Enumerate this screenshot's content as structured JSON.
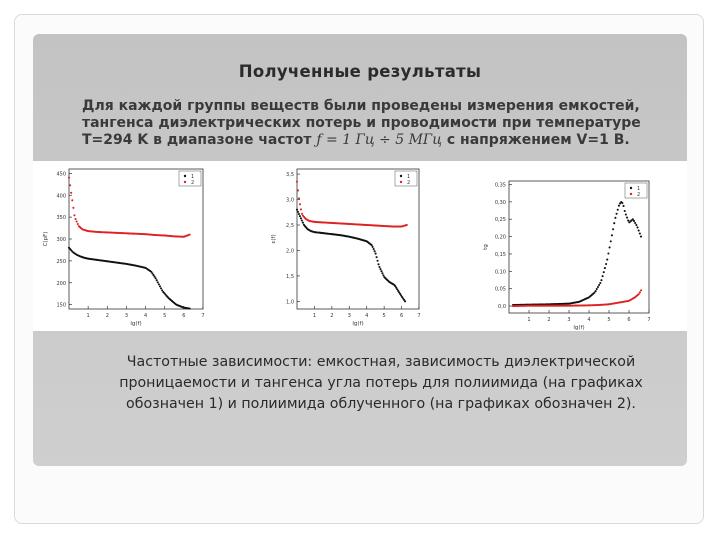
{
  "slide": {
    "title": "Полученные результаты",
    "intro": {
      "before": "Для каждой группы веществ были проведены измерения емкостей, тангенса диэлектрических потерь и проводимости при температуре T=294 K в диапазоне частот ",
      "formula": "ƒ = 1 Гц ÷ 5 МГц",
      "after": " с напряжением V=1 В."
    },
    "caption": "Частотные зависимости: емкостная, зависимость диэлектрической проницаемости и тангенса угла потерь для полиимида (на графиках обозначен 1) и полиимида облученного (на графиках обозначен 2)."
  },
  "colors": {
    "series1": "#111111",
    "series2": "#dd2222"
  },
  "chart_data": [
    {
      "type": "scatter",
      "ylabel": "C(pF)",
      "xlabel": "lg(f)",
      "xlim": [
        0,
        7
      ],
      "ylim": [
        140,
        460
      ],
      "xticks": [
        "1",
        "2",
        "3",
        "4",
        "5",
        "6",
        "7"
      ],
      "yticks": [
        "150",
        "200",
        "250",
        "300",
        "350",
        "400",
        "450"
      ],
      "legend_placement": "top-right",
      "series": [
        {
          "name": "1",
          "x": [
            0.0,
            0.2,
            0.4,
            0.6,
            0.8,
            1.0,
            1.5,
            2.0,
            2.5,
            3.0,
            3.5,
            4.0,
            4.3,
            4.5,
            4.7,
            4.9,
            5.2,
            5.6,
            6.0,
            6.3
          ],
          "y": [
            280,
            270,
            264,
            260,
            257,
            255,
            252,
            249,
            246,
            243,
            239,
            234,
            225,
            212,
            196,
            180,
            165,
            150,
            143,
            141
          ]
        },
        {
          "name": "2",
          "x": [
            0.0,
            0.1,
            0.2,
            0.3,
            0.5,
            0.7,
            1.0,
            1.5,
            2.0,
            2.5,
            3.0,
            3.5,
            4.0,
            4.5,
            5.0,
            5.5,
            6.0,
            6.3
          ],
          "y": [
            440,
            410,
            380,
            350,
            330,
            322,
            318,
            316,
            315,
            314,
            313,
            312,
            311,
            309,
            308,
            306,
            305,
            310
          ]
        }
      ]
    },
    {
      "type": "scatter",
      "ylabel": "ε(f)",
      "xlabel": "lg(f)",
      "xlim": [
        0,
        7
      ],
      "ylim": [
        0.85,
        3.6
      ],
      "xticks": [
        "1",
        "2",
        "3",
        "4",
        "5",
        "6",
        "7"
      ],
      "yticks": [
        "1,0",
        "1,5",
        "2,0",
        "2,5",
        "3,0",
        "3,5"
      ],
      "legend_placement": "top-right",
      "series": [
        {
          "name": "1",
          "x": [
            0.0,
            0.2,
            0.4,
            0.6,
            0.8,
            1.0,
            1.5,
            2.0,
            2.5,
            3.0,
            3.5,
            4.0,
            4.3,
            4.5,
            4.7,
            5.0,
            5.3,
            5.6,
            6.0,
            6.2
          ],
          "y": [
            2.8,
            2.65,
            2.5,
            2.42,
            2.38,
            2.36,
            2.34,
            2.32,
            2.3,
            2.27,
            2.23,
            2.18,
            2.1,
            1.95,
            1.7,
            1.48,
            1.38,
            1.32,
            1.1,
            1.0
          ]
        },
        {
          "name": "2",
          "x": [
            0.0,
            0.1,
            0.2,
            0.3,
            0.5,
            0.7,
            1.0,
            1.5,
            2.0,
            2.5,
            3.0,
            3.5,
            4.0,
            4.5,
            5.0,
            5.5,
            6.0,
            6.3
          ],
          "y": [
            3.35,
            3.05,
            2.85,
            2.7,
            2.62,
            2.58,
            2.56,
            2.55,
            2.54,
            2.53,
            2.52,
            2.51,
            2.5,
            2.49,
            2.48,
            2.47,
            2.47,
            2.5
          ]
        }
      ]
    },
    {
      "type": "scatter",
      "ylabel": "tg",
      "xlabel": "lg(f)",
      "xlim": [
        0,
        7
      ],
      "ylim": [
        -0.02,
        0.36
      ],
      "xticks": [
        "1",
        "2",
        "3",
        "4",
        "5",
        "6",
        "7"
      ],
      "yticks": [
        "0,0",
        "0,05",
        "0,10",
        "0,15",
        "0,20",
        "0,25",
        "0,30",
        "0,35"
      ],
      "legend_placement": "top-right",
      "series": [
        {
          "name": "1",
          "x": [
            0.2,
            1.0,
            2.0,
            3.0,
            3.5,
            4.0,
            4.3,
            4.6,
            4.9,
            5.1,
            5.3,
            5.5,
            5.6,
            5.7,
            5.8,
            6.0,
            6.2,
            6.4,
            6.6
          ],
          "y": [
            0.003,
            0.004,
            0.005,
            0.007,
            0.012,
            0.025,
            0.04,
            0.07,
            0.13,
            0.19,
            0.25,
            0.29,
            0.3,
            0.295,
            0.27,
            0.24,
            0.25,
            0.23,
            0.2
          ]
        },
        {
          "name": "2",
          "x": [
            0.2,
            1.0,
            2.0,
            3.0,
            4.0,
            4.5,
            5.0,
            5.5,
            6.0,
            6.3,
            6.5,
            6.6
          ],
          "y": [
            0.0,
            0.001,
            0.001,
            0.001,
            0.002,
            0.003,
            0.005,
            0.01,
            0.015,
            0.025,
            0.035,
            0.045
          ]
        }
      ]
    }
  ]
}
